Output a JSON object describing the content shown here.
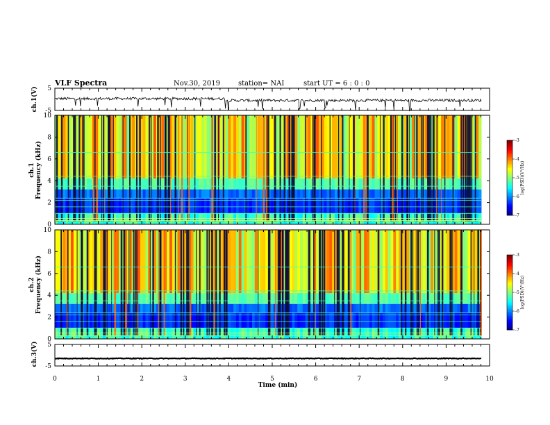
{
  "header": {
    "title": "VLF Spectra",
    "date": "Nov.30, 2019",
    "station": "station= NAI",
    "start": "start  UT =   6  : 0  : 0"
  },
  "chart_data": [
    {
      "type": "line",
      "ylabel": "ch.1(V)",
      "ylim": [
        -5,
        5
      ],
      "yticks": [
        "5",
        "-5"
      ],
      "xlim": [
        0,
        10
      ],
      "description_level": -0.5
    },
    {
      "type": "heatmap",
      "ylabel": "ch.1\nFrequency (kHz)",
      "ylabel_lines": [
        "ch.1",
        "Frequency  (kHz)"
      ],
      "ylim": [
        0,
        10
      ],
      "yticks": [
        "0",
        "2",
        "4",
        "6",
        "8",
        "10"
      ],
      "xlim": [
        0,
        10
      ],
      "colorbar": {
        "label": "log(PSD)(V²/Hz)",
        "range": [
          -7,
          -3
        ],
        "ticks": [
          "-3",
          "-4",
          "-5",
          "-6",
          "-7"
        ]
      }
    },
    {
      "type": "heatmap",
      "ylabel": "ch.2\nFrequency (kHz)",
      "ylabel_lines": [
        "ch.2",
        "Frequency  (kHz)"
      ],
      "ylim": [
        0,
        10
      ],
      "yticks": [
        "0",
        "2",
        "4",
        "6",
        "8",
        "10"
      ],
      "xlim": [
        0,
        10
      ],
      "colorbar": {
        "label": "log(PSD)(V²/Hz)",
        "range": [
          -7,
          -3
        ],
        "ticks": [
          "-3",
          "-4",
          "-5",
          "-6",
          "-7"
        ]
      }
    },
    {
      "type": "line",
      "ylabel": "ch.3(V)",
      "ylim": [
        -5,
        5
      ],
      "yticks": [
        "5",
        "-5"
      ],
      "xlim": [
        0,
        10
      ],
      "description_level": -1.5
    }
  ],
  "xaxis": {
    "label": "Time  (min)",
    "ticks": [
      "0",
      "1",
      "2",
      "3",
      "4",
      "5",
      "6",
      "7",
      "8",
      "9",
      "10"
    ]
  },
  "colors": {
    "spectrogram_bg": "#00c8c8",
    "trace": "#000000"
  }
}
